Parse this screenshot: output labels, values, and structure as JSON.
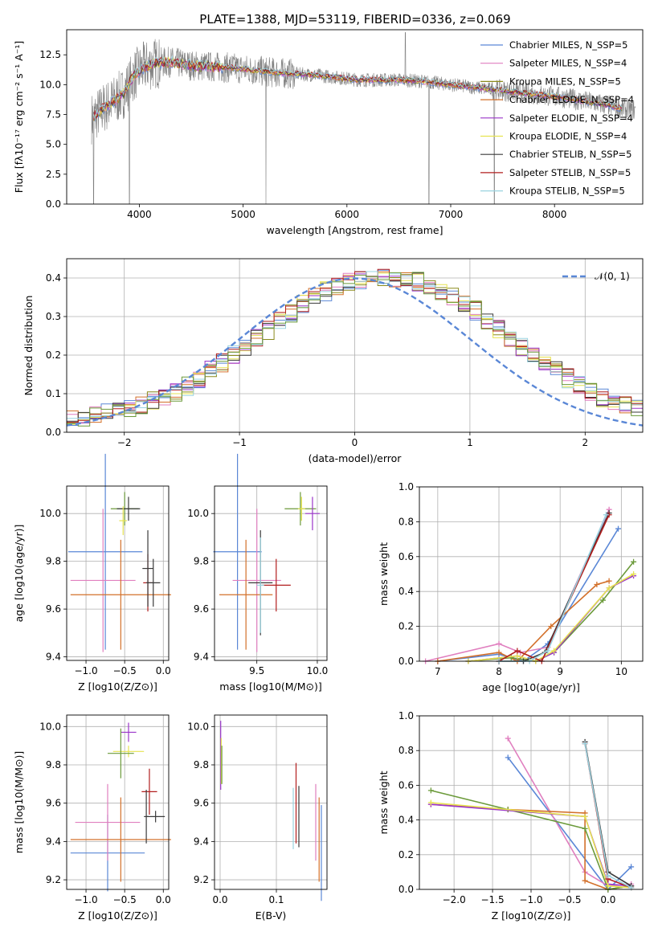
{
  "figure": {
    "title": "PLATE=1388, MJD=53119, FIBERID=0336, z=0.069"
  },
  "chart_data": [
    {
      "id": "spectrum",
      "type": "line",
      "title": "PLATE=1388, MJD=53119, FIBERID=0336, z=0.069",
      "xlabel": "wavelength [Angstrom, rest frame]",
      "ylabel": "Flux [fλ10⁻¹⁷ erg cm⁻² s⁻¹ A⁻¹]",
      "xlim": [
        3300,
        8850
      ],
      "ylim": [
        0,
        14.6
      ],
      "xticks": [
        "4000",
        "5000",
        "6000",
        "7000",
        "8000"
      ],
      "yticks": [
        "0.0",
        "2.5",
        "5.0",
        "7.5",
        "10.0",
        "12.5"
      ],
      "legend": "top-right",
      "series": [
        {
          "name": "Chabrier MILES, N_SSP=5",
          "color": "#5a87d6"
        },
        {
          "name": "Salpeter MILES, N_SSP=4",
          "color": "#e07fbf"
        },
        {
          "name": "Kroupa MILES, N_SSP=5",
          "color": "#8a8a1c"
        },
        {
          "name": "Chabrier ELODIE, N_SSP=4",
          "color": "#d3702a"
        },
        {
          "name": "Salpeter ELODIE, N_SSP=4",
          "color": "#9a35c9"
        },
        {
          "name": "Kroupa ELODIE, N_SSP=4",
          "color": "#e6e350"
        },
        {
          "name": "Chabrier STELIB, N_SSP=5",
          "color": "#3a3a3a"
        },
        {
          "name": "Salpeter STELIB, N_SSP=5",
          "color": "#b21e1e"
        },
        {
          "name": "Kroupa STELIB, N_SSP=5",
          "color": "#9ad3e0"
        }
      ],
      "model_continuum": {
        "x": [
          3550,
          3650,
          3750,
          3850,
          3950,
          4050,
          4150,
          4300,
          4500,
          4700,
          4900,
          5100,
          5300,
          5500,
          5700,
          5900,
          6100,
          6300,
          6500,
          6700,
          6900,
          7100,
          7300,
          7500,
          7700,
          7900,
          8100,
          8300,
          8500,
          8700
        ],
        "y": [
          7.2,
          8.0,
          8.6,
          9.3,
          10.8,
          11.5,
          11.8,
          11.9,
          11.6,
          11.5,
          11.4,
          11.2,
          11.0,
          10.9,
          10.8,
          10.6,
          10.4,
          10.4,
          10.4,
          10.3,
          10.1,
          9.9,
          9.7,
          9.5,
          9.3,
          9.1,
          8.9,
          8.6,
          8.3,
          7.9
        ]
      },
      "observed_data_color": "#808080"
    },
    {
      "id": "residuals",
      "type": "line",
      "xlabel": "(data-model)/error",
      "ylabel": "Normed distribution",
      "xlim": [
        -2.5,
        2.5
      ],
      "ylim": [
        0,
        0.45
      ],
      "xticks": [
        "−2",
        "−1",
        "0",
        "1",
        "2"
      ],
      "yticks": [
        "0.0",
        "0.1",
        "0.2",
        "0.3",
        "0.4"
      ],
      "grid": true,
      "legend": "top-right",
      "reference_curve": {
        "name": "𝒩(0, 1)",
        "mean": 0,
        "sigma": 1,
        "color": "#5a87d6"
      },
      "histogram": {
        "bin_start": -2.5,
        "bin_width": 0.1,
        "centre_values": [
          0.035,
          0.04,
          0.045,
          0.05,
          0.055,
          0.06,
          0.07,
          0.08,
          0.095,
          0.105,
          0.12,
          0.14,
          0.16,
          0.18,
          0.2,
          0.22,
          0.245,
          0.265,
          0.29,
          0.31,
          0.335,
          0.35,
          0.365,
          0.38,
          0.39,
          0.395,
          0.4,
          0.4,
          0.4,
          0.395,
          0.39,
          0.38,
          0.365,
          0.35,
          0.335,
          0.315,
          0.29,
          0.27,
          0.245,
          0.22,
          0.2,
          0.18,
          0.16,
          0.14,
          0.12,
          0.105,
          0.09,
          0.08,
          0.07,
          0.06
        ]
      }
    },
    {
      "id": "age-vs-Z",
      "type": "scatter",
      "xlabel": "Z [log10(Z/Z⊙)]",
      "ylabel": "age  [log10(age/yr)]",
      "xlim": [
        -1.25,
        0.07
      ],
      "ylim": [
        9.385,
        10.115
      ],
      "xticks": [
        "−1.0",
        "−0.5",
        "0.0"
      ],
      "yticks": [
        "9.4",
        "9.6",
        "9.8",
        "10.0"
      ],
      "grid": true,
      "points": [
        {
          "x": -0.75,
          "xerr": 0.48,
          "y": 9.84,
          "yerr": 0.41,
          "color": "#5a87d6"
        },
        {
          "x": -0.78,
          "xerr": 0.42,
          "y": 9.72,
          "yerr": 0.3,
          "color": "#e07fbf"
        },
        {
          "x": -0.55,
          "xerr": 0.65,
          "y": 9.66,
          "yerr": 0.23,
          "color": "#d3702a"
        },
        {
          "x": -0.5,
          "xerr": 0.18,
          "y": 10.02,
          "yerr": 0.07,
          "color": "#6b9a3a"
        },
        {
          "x": -0.45,
          "xerr": 0.15,
          "y": 10.02,
          "yerr": 0.05,
          "color": "#3a3a3a"
        },
        {
          "x": -0.52,
          "xerr": 0.05,
          "y": 9.97,
          "yerr": 0.06,
          "color": "#e6e350"
        },
        {
          "x": -0.2,
          "xerr": 0.06,
          "y": 9.71,
          "yerr": 0.12,
          "color": "#b21e1e"
        },
        {
          "x": -0.13,
          "xerr": 0.09,
          "y": 9.71,
          "yerr": 0.1,
          "color": "#3a3a3a"
        },
        {
          "x": -0.2,
          "xerr": 0.07,
          "y": 9.77,
          "yerr": 0.16,
          "color": "#3a3a3a"
        }
      ]
    },
    {
      "id": "age-vs-mass",
      "type": "scatter",
      "xlabel": "mass [log10(M/M⊙)]",
      "xlim": [
        9.15,
        10.08
      ],
      "ylim": [
        9.385,
        10.115
      ],
      "xticks": [
        "9.5",
        "10.0"
      ],
      "yticks": [
        "9.4",
        "9.6",
        "9.8",
        "10.0"
      ],
      "grid": true,
      "points": [
        {
          "x": 9.34,
          "xerr": 0.2,
          "y": 9.84,
          "yerr": 0.41,
          "color": "#5a87d6"
        },
        {
          "x": 9.5,
          "xerr": 0.2,
          "y": 9.72,
          "yerr": 0.3,
          "color": "#e07fbf"
        },
        {
          "x": 9.41,
          "xerr": 0.22,
          "y": 9.66,
          "yerr": 0.23,
          "color": "#d3702a"
        },
        {
          "x": 9.86,
          "xerr": 0.13,
          "y": 10.02,
          "yerr": 0.07,
          "color": "#6b9a3a"
        },
        {
          "x": 9.96,
          "xerr": 0.06,
          "y": 10.0,
          "yerr": 0.07,
          "color": "#9a35c9"
        },
        {
          "x": 9.87,
          "xerr": 0.03,
          "y": 10.02,
          "yerr": 0.05,
          "color": "#e6e350"
        },
        {
          "x": 9.66,
          "xerr": 0.12,
          "y": 9.7,
          "yerr": 0.11,
          "color": "#b21e1e"
        },
        {
          "x": 9.53,
          "xerr": 0.1,
          "y": 9.71,
          "yerr": 0.22,
          "color": "#3a3a3a"
        },
        {
          "x": 9.53,
          "xerr": 0.03,
          "y": 9.7,
          "yerr": 0.2,
          "color": "#9ad3e0"
        }
      ]
    },
    {
      "id": "weight-vs-age",
      "type": "line",
      "xlabel": "age  [log10(age/yr)]",
      "ylabel": "mass weight",
      "xlim": [
        6.7,
        10.35
      ],
      "ylim": [
        0,
        1
      ],
      "xticks": [
        "7",
        "8",
        "9",
        "10"
      ],
      "yticks": [
        "0.0",
        "0.2",
        "0.4",
        "0.6",
        "0.8",
        "1.0"
      ],
      "grid": true,
      "series": [
        {
          "color": "#5a87d6",
          "x": [
            7.0,
            8.0,
            8.4,
            8.8,
            9.95
          ],
          "y": [
            0.0,
            0.04,
            0.0,
            0.1,
            0.76
          ]
        },
        {
          "color": "#e07fbf",
          "x": [
            6.8,
            8.0,
            8.35,
            8.8,
            9.8
          ],
          "y": [
            0.0,
            0.1,
            0.05,
            0.08,
            0.87
          ]
        },
        {
          "color": "#d3702a",
          "x": [
            7.0,
            8.0,
            8.3,
            8.85,
            9.6,
            9.8
          ],
          "y": [
            0.0,
            0.05,
            0.0,
            0.2,
            0.44,
            0.46
          ]
        },
        {
          "color": "#6b9a3a",
          "x": [
            7.5,
            8.2,
            8.6,
            8.9,
            9.7,
            10.2
          ],
          "y": [
            0.0,
            0.02,
            0.0,
            0.05,
            0.35,
            0.57
          ]
        },
        {
          "color": "#9a35c9",
          "x": [
            7.5,
            8.3,
            8.6,
            8.9,
            9.8,
            10.2
          ],
          "y": [
            0.0,
            0.03,
            0.0,
            0.05,
            0.42,
            0.49
          ]
        },
        {
          "color": "#e6e350",
          "x": [
            7.5,
            8.3,
            8.6,
            8.9,
            9.8,
            10.2
          ],
          "y": [
            0.0,
            0.03,
            0.0,
            0.06,
            0.42,
            0.5
          ]
        },
        {
          "color": "#3a3a3a",
          "x": [
            8.0,
            8.4,
            8.75,
            9.8
          ],
          "y": [
            0.0,
            0.0,
            0.05,
            0.85
          ]
        },
        {
          "color": "#b21e1e",
          "x": [
            8.0,
            8.3,
            8.7,
            9.8
          ],
          "y": [
            0.0,
            0.06,
            0.0,
            0.84
          ]
        },
        {
          "color": "#9ad3e0",
          "x": [
            8.0,
            8.5,
            8.8,
            9.75
          ],
          "y": [
            0.0,
            0.0,
            0.06,
            0.84
          ]
        }
      ]
    },
    {
      "id": "mass-vs-Z",
      "type": "scatter",
      "xlabel": "Z [log10(Z/Z⊙)]",
      "ylabel": "mass [log10(M/M⊙)]",
      "xlim": [
        -1.25,
        0.07
      ],
      "ylim": [
        9.15,
        10.06
      ],
      "xticks": [
        "−1.0",
        "−0.5",
        "0.0"
      ],
      "yticks": [
        "9.2",
        "9.4",
        "9.6",
        "9.8",
        "10.0"
      ],
      "grid": true,
      "points": [
        {
          "x": -0.72,
          "xerr": 0.48,
          "y": 9.34,
          "yerr": 0.2,
          "color": "#5a87d6"
        },
        {
          "x": -0.72,
          "xerr": 0.42,
          "y": 9.5,
          "yerr": 0.2,
          "color": "#e07fbf"
        },
        {
          "x": -0.55,
          "xerr": 0.65,
          "y": 9.41,
          "yerr": 0.22,
          "color": "#d3702a"
        },
        {
          "x": -0.45,
          "xerr": 0.1,
          "y": 9.97,
          "yerr": 0.05,
          "color": "#9a35c9"
        },
        {
          "x": -0.45,
          "xerr": 0.2,
          "y": 9.87,
          "yerr": 0.03,
          "color": "#e6e350"
        },
        {
          "x": -0.55,
          "xerr": 0.17,
          "y": 9.86,
          "yerr": 0.13,
          "color": "#6b9a3a"
        },
        {
          "x": -0.18,
          "xerr": 0.1,
          "y": 9.66,
          "yerr": 0.12,
          "color": "#b21e1e"
        },
        {
          "x": -0.1,
          "xerr": 0.12,
          "y": 9.53,
          "yerr": 0.03,
          "color": "#3a3a3a"
        },
        {
          "x": -0.22,
          "xerr": 0.03,
          "y": 9.53,
          "yerr": 0.14,
          "color": "#3a3a3a"
        }
      ]
    },
    {
      "id": "mass-vs-EBV",
      "type": "scatter",
      "xlabel": "E(B-V)",
      "xlim": [
        -0.01,
        0.19
      ],
      "ylim": [
        9.15,
        10.06
      ],
      "xticks": [
        "0.0",
        "0.1"
      ],
      "yticks": [
        "9.2",
        "9.4",
        "9.6",
        "9.8",
        "10.0"
      ],
      "grid": true,
      "points": [
        {
          "x": 0.001,
          "y": 9.85,
          "yerr": 0.18,
          "color": "#9a35c9"
        },
        {
          "x": 0.002,
          "y": 9.82,
          "yerr": 0.12,
          "color": "#e6e350"
        },
        {
          "x": 0.003,
          "y": 9.8,
          "yerr": 0.1,
          "color": "#6b9a3a"
        },
        {
          "x": 0.13,
          "y": 9.52,
          "yerr": 0.16,
          "color": "#9ad3e0"
        },
        {
          "x": 0.135,
          "y": 9.6,
          "yerr": 0.21,
          "color": "#b21e1e"
        },
        {
          "x": 0.14,
          "y": 9.53,
          "yerr": 0.16,
          "color": "#3a3a3a"
        },
        {
          "x": 0.17,
          "y": 9.5,
          "yerr": 0.2,
          "color": "#e07fbf"
        },
        {
          "x": 0.176,
          "y": 9.41,
          "yerr": 0.22,
          "color": "#d3702a"
        },
        {
          "x": 0.18,
          "y": 9.34,
          "yerr": 0.25,
          "color": "#5a87d6"
        }
      ]
    },
    {
      "id": "weight-vs-Z",
      "type": "line",
      "xlabel": "Z [log10(Z/Z⊙)]",
      "ylabel": "mass weight",
      "xlim": [
        -2.45,
        0.45
      ],
      "ylim": [
        0,
        1
      ],
      "xticks": [
        "−2.0",
        "−1.5",
        "−1.0",
        "−0.5",
        "0.0"
      ],
      "yticks": [
        "0.0",
        "0.2",
        "0.4",
        "0.6",
        "0.8",
        "1.0"
      ],
      "grid": true,
      "series": [
        {
          "color": "#5a87d6",
          "x": [
            -1.3,
            0.0,
            0.3
          ],
          "y": [
            0.76,
            0.0,
            0.13
          ]
        },
        {
          "color": "#e07fbf",
          "x": [
            -1.3,
            -0.3,
            0.0,
            0.3
          ],
          "y": [
            0.87,
            0.1,
            0.02,
            0.03
          ]
        },
        {
          "color": "#d3702a",
          "x": [
            -2.3,
            -1.3,
            -0.3,
            -0.3,
            0.0,
            0.3
          ],
          "y": [
            0.49,
            0.46,
            0.44,
            0.05,
            0.0,
            0.02
          ]
        },
        {
          "color": "#6b9a3a",
          "x": [
            -2.3,
            -1.3,
            -0.3,
            0.0,
            0.3
          ],
          "y": [
            0.57,
            0.46,
            0.35,
            0.0,
            0.02
          ]
        },
        {
          "color": "#9a35c9",
          "x": [
            -2.3,
            -0.3,
            0.0,
            0.3
          ],
          "y": [
            0.49,
            0.42,
            0.03,
            0.02
          ]
        },
        {
          "color": "#e6e350",
          "x": [
            -2.3,
            -0.3,
            0.0,
            0.3
          ],
          "y": [
            0.5,
            0.42,
            0.02,
            0.01
          ]
        },
        {
          "color": "#3a3a3a",
          "x": [
            -0.3,
            0.0,
            0.3
          ],
          "y": [
            0.85,
            0.1,
            0.02
          ]
        },
        {
          "color": "#b21e1e",
          "x": [
            -0.3,
            0.0,
            0.3
          ],
          "y": [
            0.84,
            0.06,
            0.01
          ]
        },
        {
          "color": "#9ad3e0",
          "x": [
            -0.3,
            0.0,
            0.3
          ],
          "y": [
            0.84,
            0.08,
            0.01
          ]
        }
      ]
    }
  ]
}
